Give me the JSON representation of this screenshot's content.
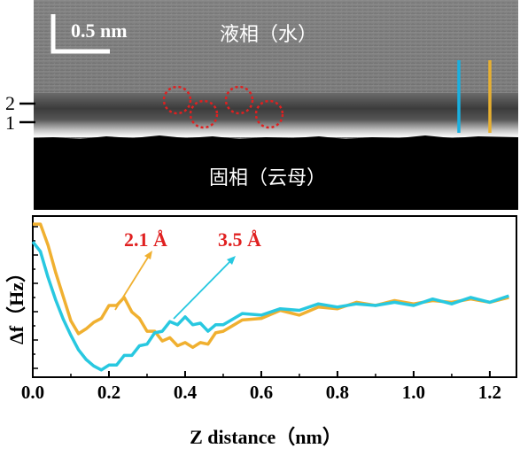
{
  "image_panel": {
    "scale_label": "0.5 nm",
    "liquid_label": "液相（水）",
    "solid_label": "固相（云母）",
    "layer_marks": [
      "1",
      "2"
    ],
    "colors": {
      "cyan_line": "#1ab0e0",
      "yellow_line": "#e8b030",
      "circles": "#e02020"
    }
  },
  "chart_data": {
    "type": "line",
    "xlabel": "Z distance（nm）",
    "ylabel": "Δf（Hz）",
    "xlim": [
      0,
      1.27
    ],
    "ylim": [
      0,
      1
    ],
    "x_ticks": [
      "0.0",
      "0.2",
      "0.4",
      "0.6",
      "0.8",
      "1.0",
      "1.2"
    ],
    "x_tick_values": [
      0,
      0.2,
      0.4,
      0.6,
      0.8,
      1.0,
      1.2
    ],
    "annotations": [
      {
        "text": "2.1 Å",
        "color": "#e02020"
      },
      {
        "text": "3.5 Å",
        "color": "#e02020"
      }
    ],
    "series": [
      {
        "color": "#f0b030",
        "x": [
          0,
          0.02,
          0.04,
          0.06,
          0.08,
          0.1,
          0.12,
          0.14,
          0.16,
          0.18,
          0.2,
          0.22,
          0.24,
          0.26,
          0.28,
          0.3,
          0.32,
          0.34,
          0.36,
          0.38,
          0.4,
          0.42,
          0.44,
          0.46,
          0.48,
          0.5,
          0.55,
          0.6,
          0.65,
          0.7,
          0.75,
          0.8,
          0.85,
          0.9,
          0.95,
          1.0,
          1.05,
          1.1,
          1.15,
          1.2,
          1.25
        ],
        "y": [
          0.95,
          0.95,
          0.82,
          0.65,
          0.5,
          0.35,
          0.27,
          0.3,
          0.34,
          0.38,
          0.43,
          0.46,
          0.48,
          0.42,
          0.35,
          0.3,
          0.27,
          0.24,
          0.23,
          0.21,
          0.2,
          0.2,
          0.2,
          0.22,
          0.26,
          0.3,
          0.34,
          0.38,
          0.4,
          0.4,
          0.42,
          0.44,
          0.45,
          0.46,
          0.46,
          0.47,
          0.46,
          0.48,
          0.47,
          0.48,
          0.48
        ]
      },
      {
        "color": "#28c8e0",
        "x": [
          0,
          0.02,
          0.04,
          0.06,
          0.08,
          0.1,
          0.12,
          0.14,
          0.16,
          0.18,
          0.2,
          0.22,
          0.24,
          0.26,
          0.28,
          0.3,
          0.32,
          0.34,
          0.36,
          0.38,
          0.4,
          0.42,
          0.44,
          0.46,
          0.48,
          0.5,
          0.55,
          0.6,
          0.65,
          0.7,
          0.75,
          0.8,
          0.85,
          0.9,
          0.95,
          1.0,
          1.05,
          1.1,
          1.15,
          1.2,
          1.25
        ],
        "y": [
          0.84,
          0.78,
          0.62,
          0.48,
          0.36,
          0.26,
          0.17,
          0.11,
          0.07,
          0.06,
          0.06,
          0.09,
          0.12,
          0.15,
          0.18,
          0.22,
          0.26,
          0.3,
          0.33,
          0.34,
          0.36,
          0.34,
          0.32,
          0.3,
          0.31,
          0.34,
          0.38,
          0.4,
          0.41,
          0.43,
          0.44,
          0.45,
          0.44,
          0.46,
          0.45,
          0.46,
          0.47,
          0.47,
          0.48,
          0.48,
          0.49
        ]
      }
    ]
  }
}
